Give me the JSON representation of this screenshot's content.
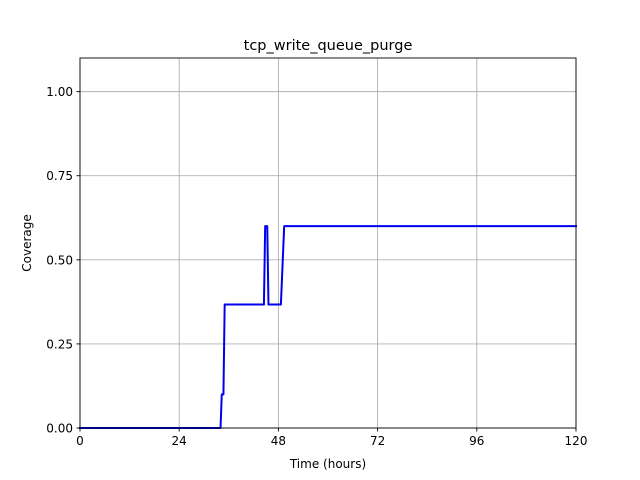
{
  "chart_data": {
    "type": "line",
    "title": "tcp_write_queue_purge",
    "xlabel": "Time (hours)",
    "ylabel": "Coverage",
    "xlim": [
      0,
      120
    ],
    "ylim": [
      0,
      1.1
    ],
    "xticks": [
      0,
      24,
      48,
      72,
      96,
      120
    ],
    "xtick_labels": [
      "0",
      "24",
      "48",
      "72",
      "96",
      "120"
    ],
    "yticks": [
      0,
      0.25,
      0.5,
      0.75,
      1.0
    ],
    "ytick_labels": [
      "0.00",
      "0.25",
      "0.50",
      "0.75",
      "1.00"
    ],
    "grid": true,
    "legend": "none",
    "series": [
      {
        "color": "#0000ee",
        "x": [
          0,
          34.0,
          34.3,
          34.7,
          35.0,
          35.2,
          44.5,
          44.8,
          45.3,
          45.6,
          48.6,
          49.4,
          120
        ],
        "y": [
          0,
          0,
          0.1,
          0.1,
          0.367,
          0.367,
          0.367,
          0.6,
          0.6,
          0.367,
          0.367,
          0.6,
          0.6
        ]
      }
    ]
  }
}
